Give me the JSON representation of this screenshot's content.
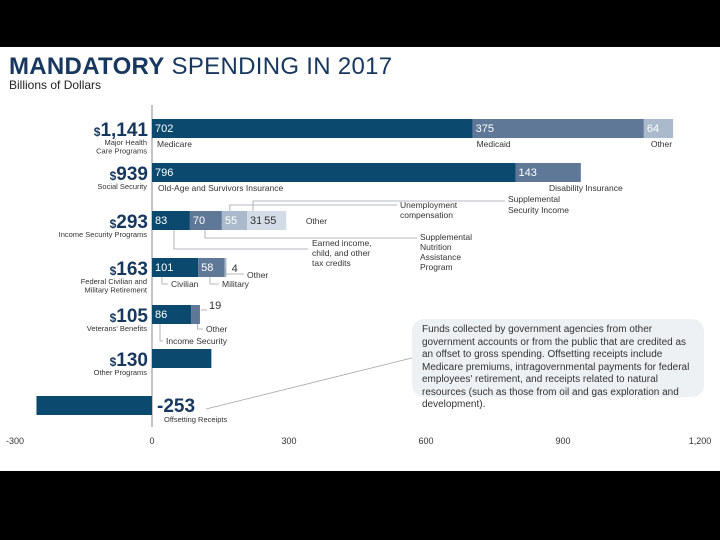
{
  "title_bold": "MANDATORY",
  "title_rest": " SPENDING IN 2017",
  "subtitle": "Billions of Dollars",
  "colors": {
    "dark": "#0b4a6e",
    "mid": "#5f7898",
    "light": "#aab9cc",
    "lighter": "#d3dbe6",
    "navy": "#17375e"
  },
  "callout_text": "Funds collected by government agencies from other government accounts or from the public that are credited as an offset to gross spending. Offsetting receipts include Medicare premiums, intragovernmental payments for federal employees' retirement, and receipts related to natural resources (such as those from oil and gas exploration and development).",
  "chart_data": {
    "type": "bar",
    "orientation": "horizontal",
    "stacked": true,
    "title": "MANDATORY SPENDING IN 2017",
    "xlabel": "Billions of Dollars",
    "xlim": [
      -300,
      1200
    ],
    "ticks": [
      -300,
      0,
      300,
      600,
      900,
      1200
    ],
    "tick_labels": [
      "-300",
      "0",
      "300",
      "600",
      "900",
      "1,200"
    ],
    "categories": [
      {
        "total_label": "1,141",
        "name": [
          "Major Health",
          "Care Programs"
        ],
        "segments": [
          {
            "value": 702,
            "label": "702",
            "name": "Medicare",
            "shade": "dark"
          },
          {
            "value": 375,
            "label": "375",
            "name": "Medicaid",
            "shade": "mid"
          },
          {
            "value": 64,
            "label": "64",
            "name": "Other",
            "shade": "light"
          }
        ]
      },
      {
        "total_label": "939",
        "name": [
          "Social Security"
        ],
        "segments": [
          {
            "value": 796,
            "label": "796",
            "name": "Old-Age and Survivors Insurance",
            "shade": "dark"
          },
          {
            "value": 143,
            "label": "143",
            "name": "Disability Insurance",
            "shade": "mid"
          }
        ]
      },
      {
        "total_label": "293",
        "name": [
          "Income Security Programs"
        ],
        "segments": [
          {
            "value": 83,
            "label": "83",
            "name": "Earned income, child, and other tax credits",
            "shade": "dark"
          },
          {
            "value": 70,
            "label": "70",
            "name": "Supplemental Nutrition Assistance Program",
            "shade": "mid"
          },
          {
            "value": 55,
            "label": "55",
            "name": "Unemployment compensation",
            "shade": "light"
          },
          {
            "value": 31,
            "label": "31",
            "name": "Supplemental Security Income",
            "shade": "lighter"
          },
          {
            "value": 55,
            "label": "55",
            "name": "Other",
            "shade": "lighter"
          }
        ]
      },
      {
        "total_label": "163",
        "name": [
          "Federal Civilian and",
          "Military Retirement"
        ],
        "segments": [
          {
            "value": 101,
            "label": "101",
            "name": "Civilian",
            "shade": "dark"
          },
          {
            "value": 58,
            "label": "58",
            "name": "Military",
            "shade": "mid"
          },
          {
            "value": 4,
            "label": "4",
            "name": "Other",
            "shade": "light"
          }
        ]
      },
      {
        "total_label": "105",
        "name": [
          "Veterans' Benefits"
        ],
        "segments": [
          {
            "value": 86,
            "label": "86",
            "name": "Income Security",
            "shade": "dark"
          },
          {
            "value": 19,
            "label": "19",
            "name": "Other",
            "shade": "mid"
          }
        ]
      },
      {
        "total_label": "130",
        "name": [
          "Other Programs"
        ],
        "segments": [
          {
            "value": 130,
            "label": "",
            "name": "",
            "shade": "dark"
          }
        ]
      },
      {
        "total_label": "-253",
        "name": [
          "Offsetting Receipts"
        ],
        "segments": [
          {
            "value": -253,
            "label": "",
            "name": "",
            "shade": "dark"
          }
        ]
      }
    ],
    "annotation_labels": {
      "medicare": "Medicare",
      "medicaid": "Medicaid",
      "health_other": "Other",
      "oasi": "Old-Age and Survivors Insurance",
      "di": "Disability Insurance",
      "income_other": "Other",
      "unemployment": [
        "Unemployment",
        "compensation"
      ],
      "ssi": [
        "Supplemental",
        "Security Income"
      ],
      "eitc": [
        "Earned income,",
        "child, and other",
        "tax credits"
      ],
      "snap": [
        "Supplemental",
        "Nutrition",
        "Assistance",
        "Program"
      ],
      "civilian": "Civilian",
      "military": "Military",
      "ret_other": "Other",
      "vet_income": "Income Security",
      "vet_other": "Other"
    }
  }
}
